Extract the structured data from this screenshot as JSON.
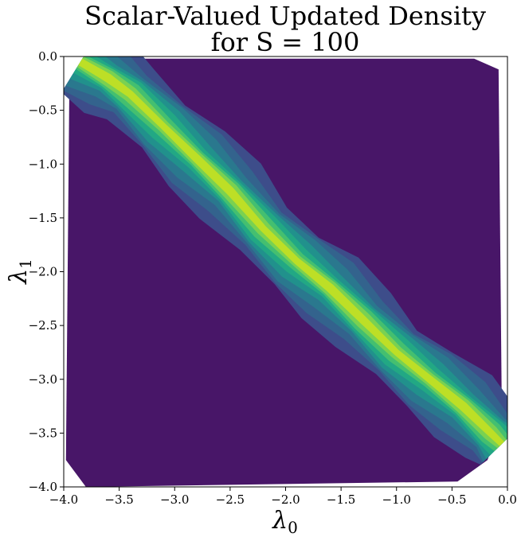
{
  "chart_data": {
    "type": "contour",
    "title_line1": "Scalar-Valued Updated Density",
    "title_line2": "for S = 100",
    "xlabel_symbol": "λ",
    "xlabel_sub": "0",
    "ylabel_symbol": "λ",
    "ylabel_sub": "1",
    "xlim": [
      -4.0,
      0.0
    ],
    "ylim": [
      -4.0,
      0.0
    ],
    "x_ticks": [
      -4.0,
      -3.5,
      -3.0,
      -2.5,
      -2.0,
      -1.5,
      -1.0,
      -0.5,
      0.0
    ],
    "x_tick_labels": [
      "−4.0",
      "−3.5",
      "−3.0",
      "−2.5",
      "−2.0",
      "−1.5",
      "−1.0",
      "−0.5",
      "0.0"
    ],
    "y_ticks": [
      0.0,
      -0.5,
      -1.0,
      -1.5,
      -2.0,
      -2.5,
      -3.0,
      -3.5,
      -4.0
    ],
    "y_tick_labels": [
      "0.0",
      "−0.5",
      "−1.0",
      "−1.5",
      "−2.0",
      "−2.5",
      "−3.0",
      "−3.5",
      "−4.0"
    ],
    "grid": false,
    "colormap": "viridis",
    "background_level_color": "#481668",
    "level_colors": [
      "#3d4d8a",
      "#33638d",
      "#2a788e",
      "#21918c",
      "#22a884",
      "#44bf70",
      "#7ad151",
      "#bddf26"
    ],
    "level_half_widths": [
      0.33,
      0.27,
      0.22,
      0.17,
      0.13,
      0.095,
      0.065,
      0.035
    ],
    "ridge": {
      "x": [
        -3.85,
        -3.6,
        -3.4,
        -3.1,
        -2.8,
        -2.5,
        -2.2,
        -1.9,
        -1.6,
        -1.3,
        -1.0,
        -0.7,
        -0.4,
        -0.15,
        -0.05
      ],
      "y": [
        -0.05,
        -0.2,
        -0.35,
        -0.65,
        -0.95,
        -1.25,
        -1.6,
        -1.9,
        -2.15,
        -2.45,
        -2.75,
        -3.0,
        -3.25,
        -3.5,
        -3.6
      ]
    },
    "support_region": {
      "x": [
        -3.95,
        -3.8,
        -3.55,
        -0.3,
        -0.08,
        -0.05,
        -0.18,
        -0.45,
        -3.8,
        -3.98
      ],
      "y": [
        -0.35,
        -0.12,
        -0.02,
        -0.02,
        -0.12,
        -3.4,
        -3.75,
        -3.95,
        -4.0,
        -3.75
      ]
    }
  }
}
